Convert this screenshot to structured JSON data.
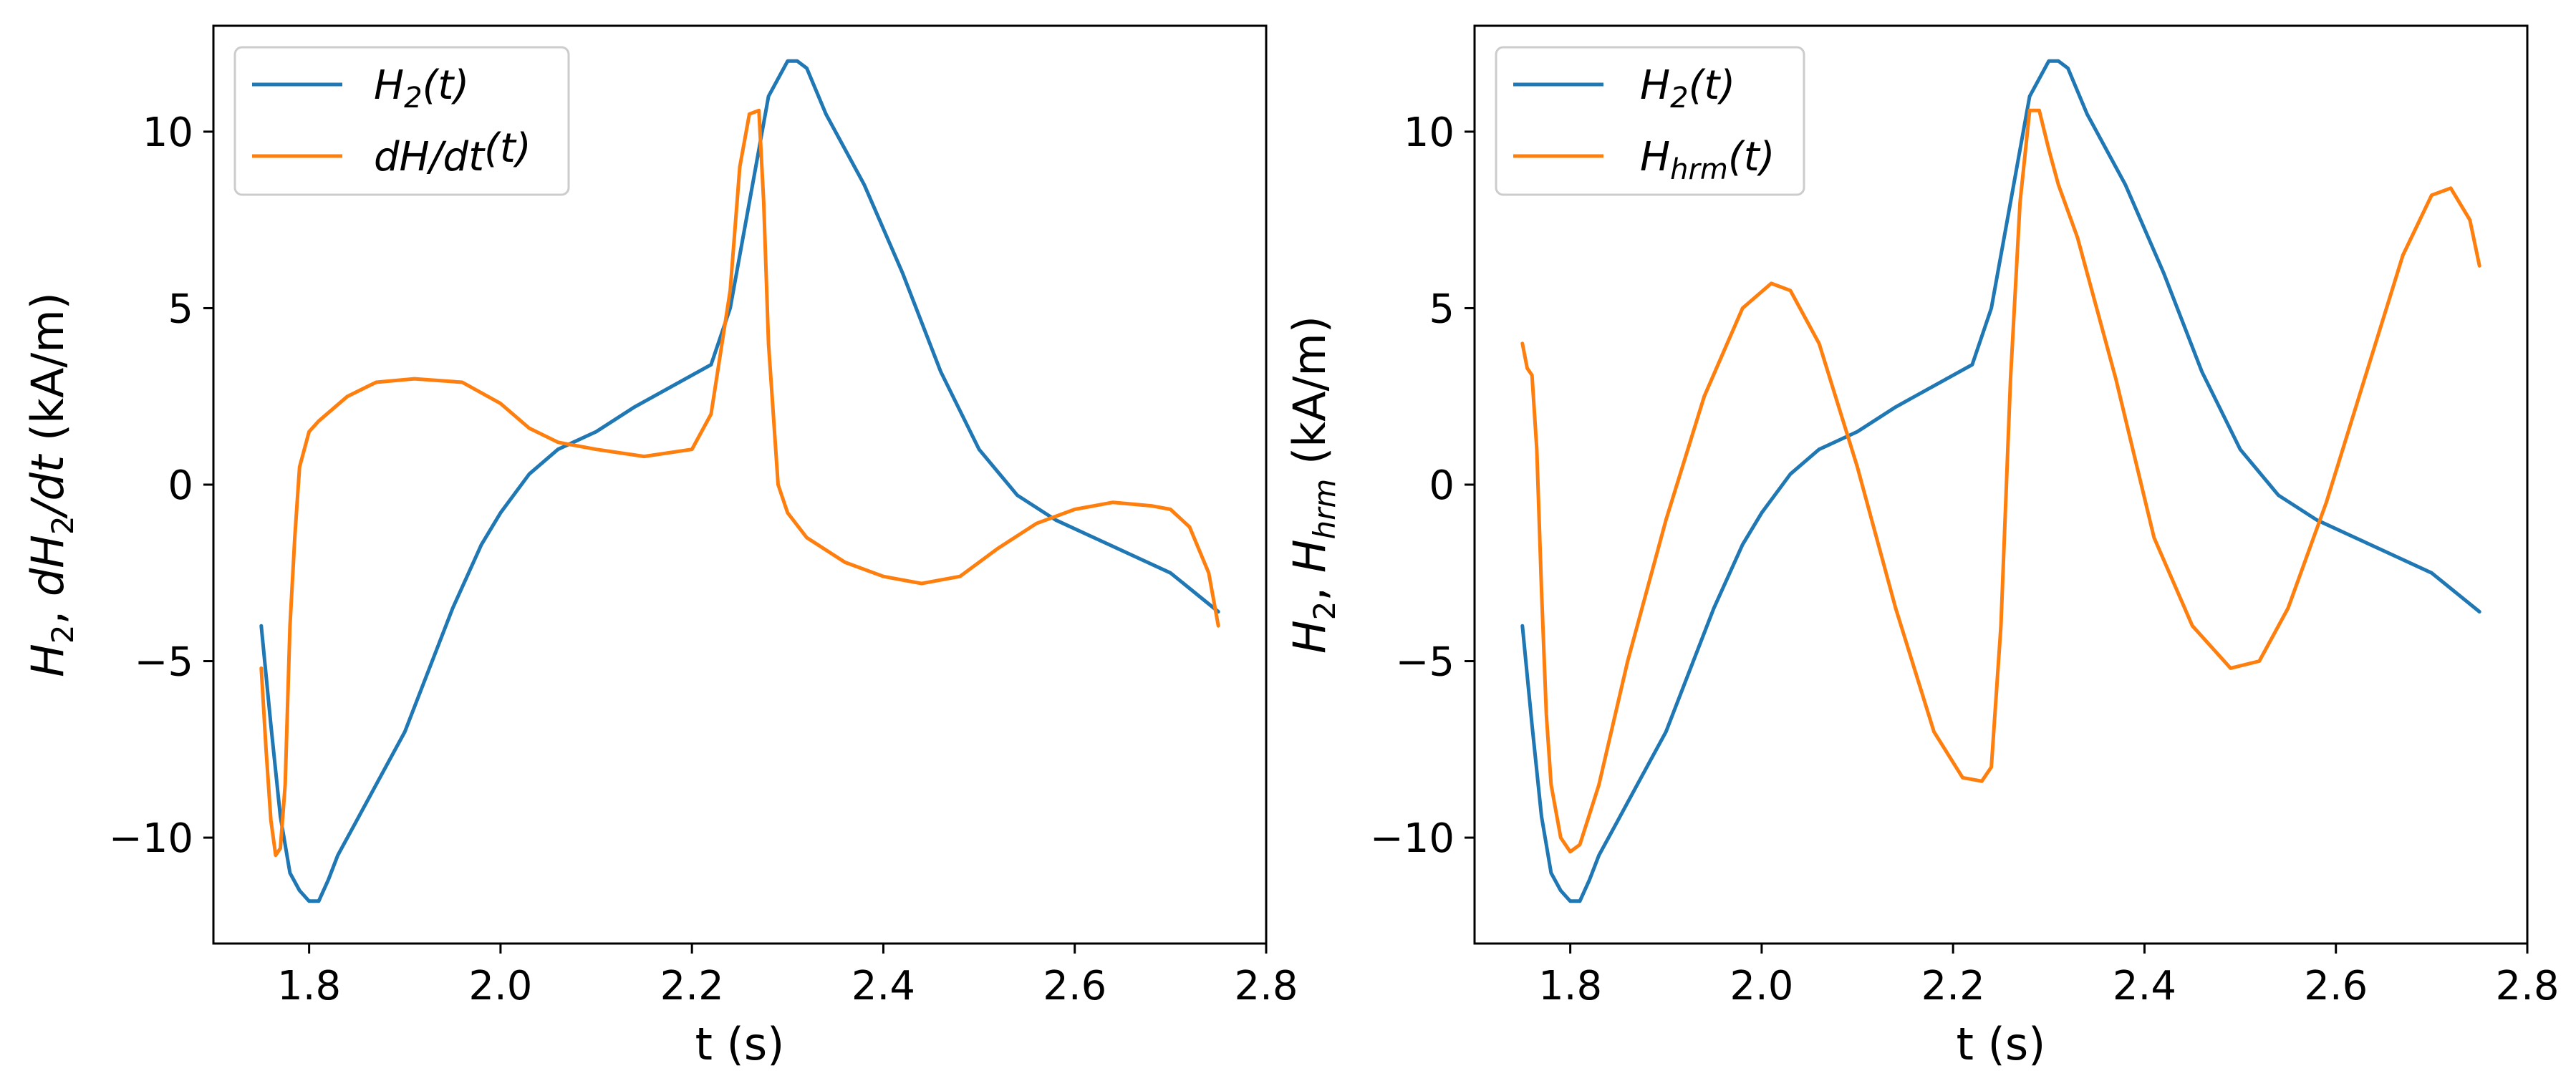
{
  "chart_data": [
    {
      "type": "line",
      "xlabel": "t (s)",
      "ylabel_parts": [
        "H",
        "2",
        ", ",
        "dH",
        "2",
        "/",
        "dt",
        " (kA/m)"
      ],
      "xlim": [
        1.7,
        2.8
      ],
      "ylim": [
        -13,
        13
      ],
      "xticks": [
        1.8,
        2.0,
        2.2,
        2.4,
        2.6,
        2.8
      ],
      "xtick_labels": [
        "1.8",
        "2.0",
        "2.2",
        "2.4",
        "2.6",
        "2.8"
      ],
      "yticks": [
        -10,
        -5,
        0,
        5,
        10
      ],
      "ytick_labels": [
        "−10",
        "−5",
        "0",
        "5",
        "10"
      ],
      "legend_position": "upper-left",
      "series": [
        {
          "name": "H2(t)",
          "legend_main": "H",
          "legend_sub": "2",
          "legend_tail": "(t)",
          "color": "#1f77b4",
          "x": [
            1.75,
            1.76,
            1.77,
            1.78,
            1.79,
            1.8,
            1.81,
            1.82,
            1.83,
            1.85,
            1.87,
            1.9,
            1.92,
            1.95,
            1.98,
            2.0,
            2.03,
            2.06,
            2.1,
            2.14,
            2.18,
            2.22,
            2.24,
            2.26,
            2.28,
            2.3,
            2.31,
            2.32,
            2.34,
            2.38,
            2.42,
            2.46,
            2.5,
            2.54,
            2.58,
            2.62,
            2.66,
            2.7,
            2.75
          ],
          "y": [
            -4.0,
            -6.8,
            -9.4,
            -11.0,
            -11.5,
            -11.8,
            -11.8,
            -11.2,
            -10.5,
            -9.5,
            -8.5,
            -7.0,
            -5.6,
            -3.5,
            -1.7,
            -0.8,
            0.3,
            1.0,
            1.5,
            2.2,
            2.8,
            3.4,
            5.0,
            8.0,
            11.0,
            12.0,
            12.0,
            11.8,
            10.5,
            8.5,
            6.0,
            3.2,
            1.0,
            -0.3,
            -1.0,
            -1.5,
            -2.0,
            -2.5,
            -3.6
          ]
        },
        {
          "name": "dH/dt(t)",
          "legend_main": "dH/dt",
          "legend_sub": "",
          "legend_tail": "(t)",
          "color": "#ff7f0e",
          "x": [
            1.75,
            1.755,
            1.76,
            1.765,
            1.77,
            1.775,
            1.78,
            1.785,
            1.79,
            1.8,
            1.81,
            1.84,
            1.87,
            1.91,
            1.96,
            2.0,
            2.03,
            2.06,
            2.1,
            2.15,
            2.2,
            2.22,
            2.24,
            2.25,
            2.26,
            2.27,
            2.275,
            2.28,
            2.29,
            2.3,
            2.32,
            2.36,
            2.4,
            2.44,
            2.48,
            2.52,
            2.56,
            2.6,
            2.64,
            2.68,
            2.7,
            2.72,
            2.74,
            2.75
          ],
          "y": [
            -5.2,
            -7.5,
            -9.5,
            -10.5,
            -10.3,
            -8.5,
            -4.0,
            -1.5,
            0.5,
            1.5,
            1.8,
            2.5,
            2.9,
            3.0,
            2.9,
            2.3,
            1.6,
            1.2,
            1.0,
            0.8,
            1.0,
            2.0,
            5.5,
            9.0,
            10.5,
            10.6,
            8.0,
            4.0,
            0.0,
            -0.8,
            -1.5,
            -2.2,
            -2.6,
            -2.8,
            -2.6,
            -1.8,
            -1.1,
            -0.7,
            -0.5,
            -0.6,
            -0.7,
            -1.2,
            -2.5,
            -4.0
          ]
        }
      ]
    },
    {
      "type": "line",
      "xlabel": "t (s)",
      "ylabel_parts": [
        "H",
        "2",
        ", ",
        "H",
        "hrm",
        "",
        "",
        " (kA/m)"
      ],
      "xlim": [
        1.7,
        2.8
      ],
      "ylim": [
        -13,
        13
      ],
      "xticks": [
        1.8,
        2.0,
        2.2,
        2.4,
        2.6,
        2.8
      ],
      "xtick_labels": [
        "1.8",
        "2.0",
        "2.2",
        "2.4",
        "2.6",
        "2.8"
      ],
      "yticks": [
        -10,
        -5,
        0,
        5,
        10
      ],
      "ytick_labels": [
        "−10",
        "−5",
        "0",
        "5",
        "10"
      ],
      "legend_position": "upper-left",
      "series": [
        {
          "name": "H2(t)",
          "legend_main": "H",
          "legend_sub": "2",
          "legend_tail": "(t)",
          "color": "#1f77b4",
          "x": [
            1.75,
            1.76,
            1.77,
            1.78,
            1.79,
            1.8,
            1.81,
            1.82,
            1.83,
            1.85,
            1.87,
            1.9,
            1.92,
            1.95,
            1.98,
            2.0,
            2.03,
            2.06,
            2.1,
            2.14,
            2.18,
            2.22,
            2.24,
            2.26,
            2.28,
            2.3,
            2.31,
            2.32,
            2.34,
            2.38,
            2.42,
            2.46,
            2.5,
            2.54,
            2.58,
            2.62,
            2.66,
            2.7,
            2.75
          ],
          "y": [
            -4.0,
            -6.8,
            -9.4,
            -11.0,
            -11.5,
            -11.8,
            -11.8,
            -11.2,
            -10.5,
            -9.5,
            -8.5,
            -7.0,
            -5.6,
            -3.5,
            -1.7,
            -0.8,
            0.3,
            1.0,
            1.5,
            2.2,
            2.8,
            3.4,
            5.0,
            8.0,
            11.0,
            12.0,
            12.0,
            11.8,
            10.5,
            8.5,
            6.0,
            3.2,
            1.0,
            -0.3,
            -1.0,
            -1.5,
            -2.0,
            -2.5,
            -3.6
          ]
        },
        {
          "name": "Hhrm(t)",
          "legend_main": "H",
          "legend_sub": "hrm",
          "legend_tail": "(t)",
          "color": "#ff7f0e",
          "x": [
            1.75,
            1.755,
            1.76,
            1.765,
            1.77,
            1.775,
            1.78,
            1.79,
            1.8,
            1.81,
            1.83,
            1.86,
            1.9,
            1.94,
            1.98,
            2.01,
            2.03,
            2.06,
            2.1,
            2.14,
            2.18,
            2.21,
            2.23,
            2.24,
            2.25,
            2.26,
            2.27,
            2.28,
            2.29,
            2.3,
            2.31,
            2.33,
            2.37,
            2.41,
            2.45,
            2.49,
            2.52,
            2.55,
            2.59,
            2.63,
            2.67,
            2.7,
            2.72,
            2.74,
            2.75
          ],
          "y": [
            4.0,
            3.3,
            3.1,
            1.0,
            -3.0,
            -6.5,
            -8.5,
            -10.0,
            -10.4,
            -10.2,
            -8.5,
            -5.0,
            -1.0,
            2.5,
            5.0,
            5.7,
            5.5,
            4.0,
            0.5,
            -3.5,
            -7.0,
            -8.3,
            -8.4,
            -8.0,
            -4.0,
            3.0,
            8.0,
            10.6,
            10.6,
            9.5,
            8.5,
            7.0,
            3.0,
            -1.5,
            -4.0,
            -5.2,
            -5.0,
            -3.5,
            -0.5,
            3.0,
            6.5,
            8.2,
            8.4,
            7.5,
            6.2
          ]
        }
      ]
    }
  ]
}
